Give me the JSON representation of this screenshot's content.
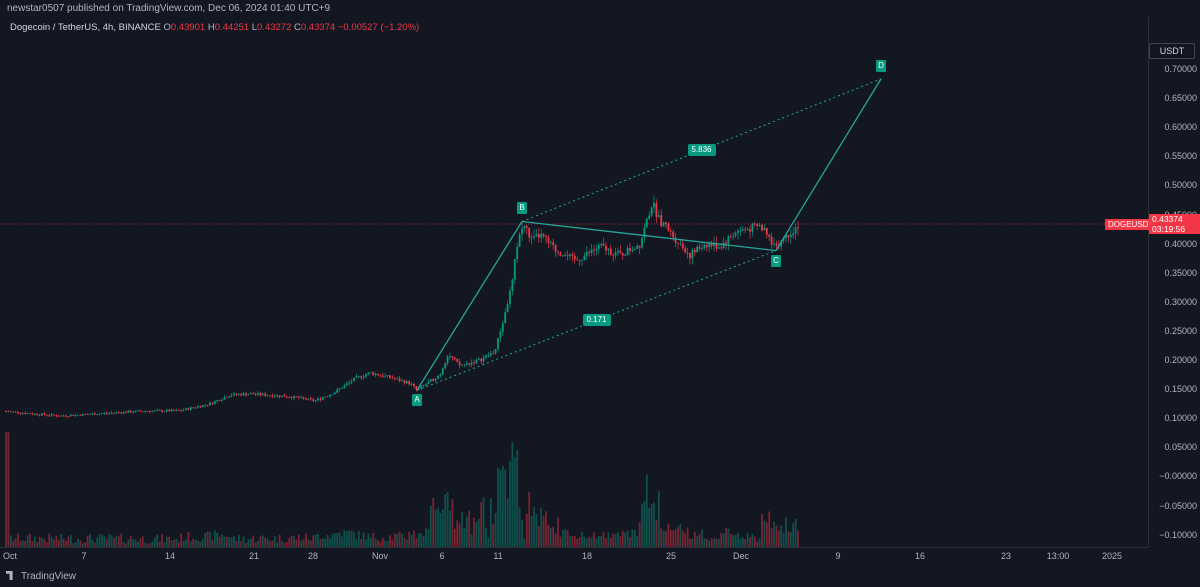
{
  "header": {
    "published_line": "newstar0507 published on TradingView.com, Dec 06, 2024 01:40 UTC+9"
  },
  "legend": {
    "symbol_line": "Dogecoin / TetherUS, 4h, BINANCE",
    "open_key": "O",
    "open": "0.43901",
    "high_key": "H",
    "high": "0.44251",
    "low_key": "L",
    "low": "0.43272",
    "close_key": "C",
    "close": "0.43374",
    "change": "−0.00527 (−1.20%)"
  },
  "price_axis": {
    "currency": "USDT",
    "ticks": [
      "0.70000",
      "0.65000",
      "0.60000",
      "0.55000",
      "0.50000",
      "0.45000",
      "0.40000",
      "0.35000",
      "0.30000",
      "0.25000",
      "0.20000",
      "0.15000",
      "0.10000",
      "0.05000",
      "−0.00000",
      "−0.05000",
      "−0.10000"
    ],
    "tick_values": [
      0.7,
      0.65,
      0.6,
      0.55,
      0.5,
      0.45,
      0.4,
      0.35,
      0.3,
      0.25,
      0.2,
      0.15,
      0.1,
      0.05,
      0.0,
      -0.05,
      -0.1
    ],
    "last_price": "0.43374",
    "countdown": "03:19:56",
    "symbol_tag": "DOGEUSDT"
  },
  "time_axis": {
    "labels": [
      "Oct",
      "7",
      "14",
      "21",
      "28",
      "Nov",
      "6",
      "11",
      "18",
      "25",
      "Dec",
      "9",
      "16",
      "23",
      "13:00",
      "2025"
    ]
  },
  "pattern": {
    "points": [
      {
        "label": "A",
        "date": "Nov 4",
        "price": 0.148
      },
      {
        "label": "B",
        "date": "Nov 12",
        "price": 0.438
      },
      {
        "label": "C",
        "date": "Dec 3",
        "price": 0.388
      },
      {
        "label": "D",
        "date": "Dec 12",
        "price": 0.683
      }
    ],
    "ratio_top": "5.836",
    "ratio_bottom": "0.171"
  },
  "colors": {
    "up": "#089981",
    "down": "#f23645",
    "background": "#131722",
    "pattern": "#26a69a"
  },
  "chart_data": {
    "type": "candlestick",
    "series": [
      {
        "name": "Dogecoin / TetherUS",
        "x": [
          "Oct 1",
          "Oct 7",
          "Oct 14",
          "Oct 21",
          "Oct 28",
          "Nov 1",
          "Nov 4",
          "Nov 6",
          "Nov 8",
          "Nov 10",
          "Nov 11",
          "Nov 12",
          "Nov 15",
          "Nov 18",
          "Nov 21",
          "Nov 23",
          "Nov 25",
          "Nov 28",
          "Dec 1",
          "Dec 3",
          "Dec 5"
        ],
        "close": [
          0.112,
          0.107,
          0.113,
          0.14,
          0.132,
          0.165,
          0.15,
          0.195,
          0.205,
          0.28,
          0.36,
          0.42,
          0.375,
          0.37,
          0.385,
          0.455,
          0.41,
          0.4,
          0.42,
          0.395,
          0.434
        ]
      }
    ],
    "ylim": [
      -0.11,
      0.74
    ]
  },
  "footer": {
    "brand": "TradingView"
  }
}
